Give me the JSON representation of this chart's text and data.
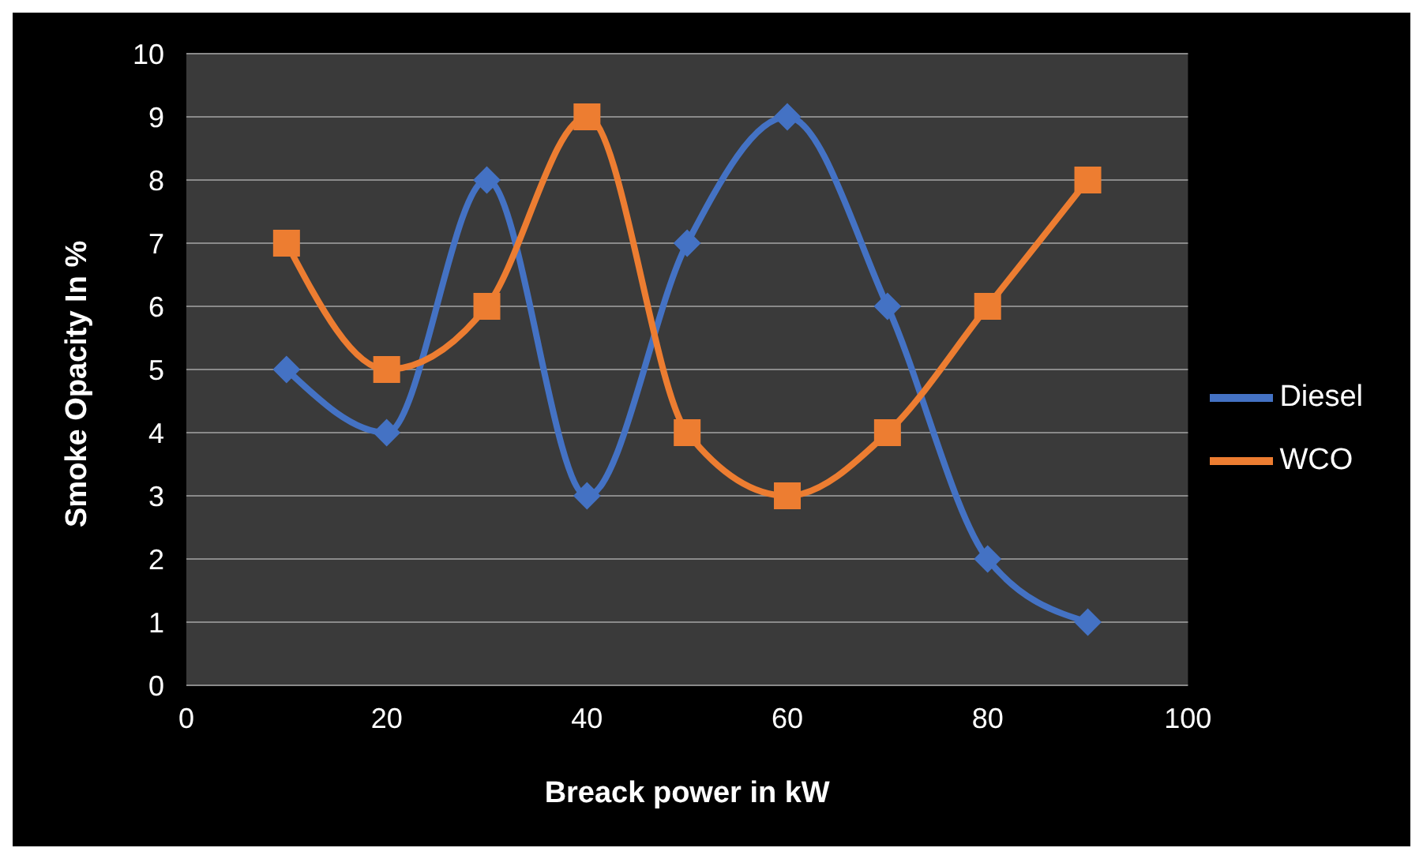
{
  "chart_data": {
    "type": "line",
    "xlabel": "Breack power in kW",
    "ylabel": "Smoke Opacity In %",
    "x": [
      10,
      20,
      30,
      40,
      50,
      60,
      70,
      80,
      90
    ],
    "series": [
      {
        "name": "Diesel",
        "color": "#4472c4",
        "marker": "diamond",
        "values": [
          5,
          4,
          8,
          3,
          7,
          9,
          6,
          2,
          1
        ]
      },
      {
        "name": "WCO",
        "color": "#ed7d31",
        "marker": "square",
        "values": [
          7,
          5,
          6,
          9,
          4,
          3,
          4,
          6,
          8
        ]
      }
    ],
    "xlim": [
      0,
      100
    ],
    "xticks": [
      0,
      20,
      40,
      60,
      80,
      100
    ],
    "ylim": [
      0,
      10
    ],
    "yticks": [
      0,
      1,
      2,
      3,
      4,
      5,
      6,
      7,
      8,
      9,
      10
    ],
    "grid": "y",
    "legend": "right",
    "line_style": "solid"
  }
}
